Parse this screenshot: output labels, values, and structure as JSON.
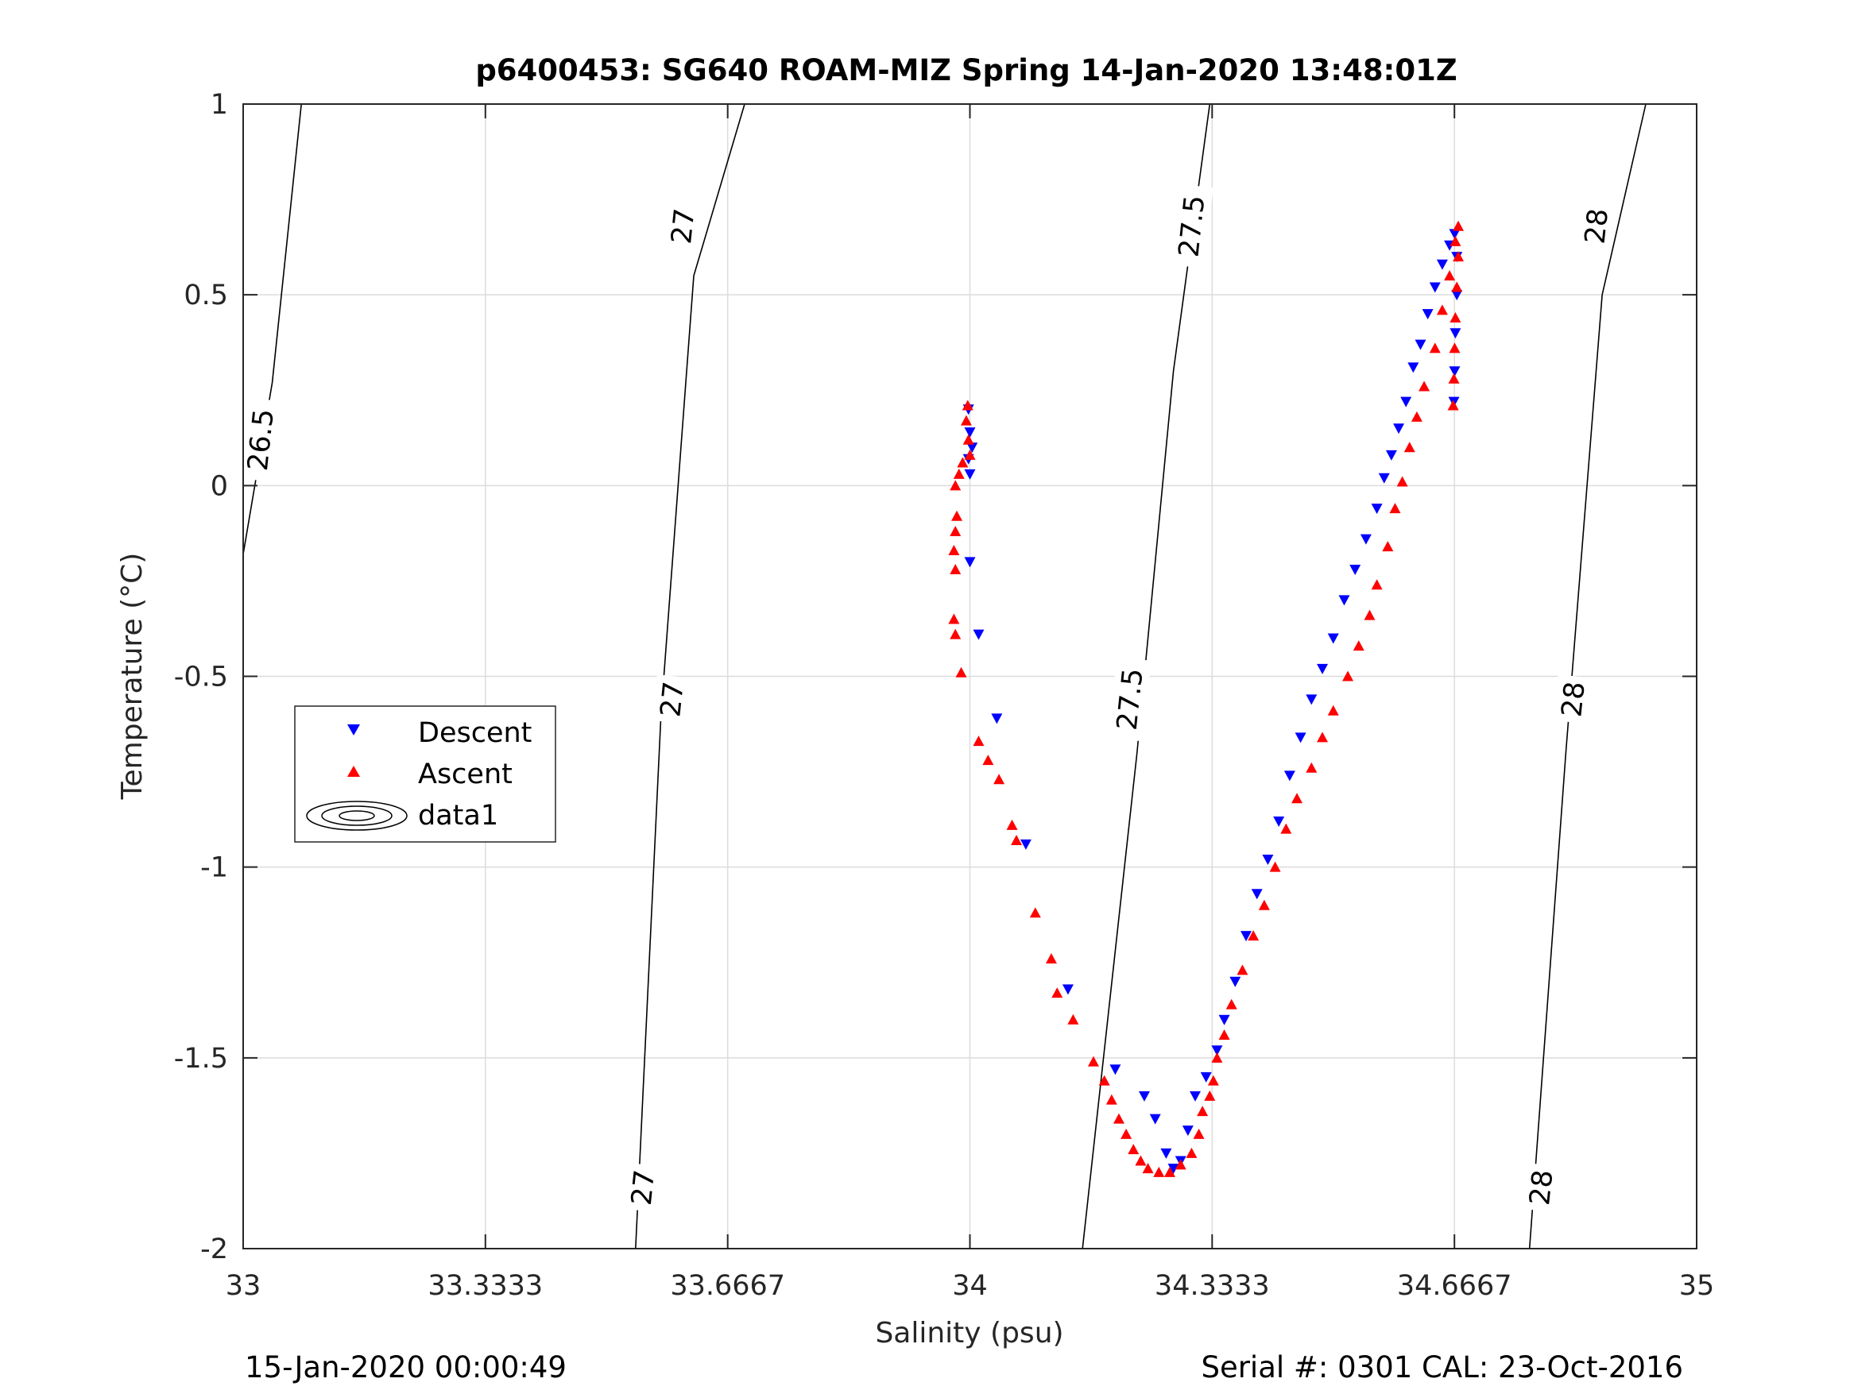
{
  "chart_data": {
    "type": "scatter",
    "title": "p6400453: SG640 ROAM-MIZ Spring 14-Jan-2020 13:48:01Z",
    "xlabel": "Salinity (psu)",
    "ylabel": "Temperature (°C)",
    "xlim": [
      33,
      35
    ],
    "ylim": [
      -2,
      1
    ],
    "xticks": [
      33,
      33.3333,
      33.6667,
      34,
      34.3333,
      34.6667,
      35
    ],
    "xtick_labels": [
      "33",
      "33.3333",
      "33.6667",
      "34",
      "34.3333",
      "34.6667",
      "35"
    ],
    "yticks": [
      -2,
      -1.5,
      -1,
      -0.5,
      0,
      0.5,
      1
    ],
    "ytick_labels": [
      "-2",
      "-1.5",
      "-1",
      "-0.5",
      "0",
      "0.5",
      "1"
    ],
    "grid": true,
    "legend_position": "middle-left",
    "legend": [
      "Descent",
      "Ascent",
      "data1"
    ],
    "series": [
      {
        "name": "Descent",
        "marker": "triangle-down",
        "color": "#0000ff",
        "points": [
          [
            33.998,
            0.2
          ],
          [
            34.0,
            0.14
          ],
          [
            34.003,
            0.1
          ],
          [
            33.998,
            0.07
          ],
          [
            34.0,
            0.03
          ],
          [
            34.0,
            -0.2
          ],
          [
            34.012,
            -0.39
          ],
          [
            34.037,
            -0.61
          ],
          [
            34.077,
            -0.94
          ],
          [
            34.135,
            -1.32
          ],
          [
            34.2,
            -1.53
          ],
          [
            34.24,
            -1.6
          ],
          [
            34.255,
            -1.66
          ],
          [
            34.27,
            -1.75
          ],
          [
            34.28,
            -1.79
          ],
          [
            34.29,
            -1.77
          ],
          [
            34.3,
            -1.69
          ],
          [
            34.31,
            -1.6
          ],
          [
            34.325,
            -1.55
          ],
          [
            34.34,
            -1.48
          ],
          [
            34.35,
            -1.4
          ],
          [
            34.365,
            -1.3
          ],
          [
            34.38,
            -1.18
          ],
          [
            34.395,
            -1.07
          ],
          [
            34.41,
            -0.98
          ],
          [
            34.425,
            -0.88
          ],
          [
            34.44,
            -0.76
          ],
          [
            34.455,
            -0.66
          ],
          [
            34.47,
            -0.56
          ],
          [
            34.485,
            -0.48
          ],
          [
            34.5,
            -0.4
          ],
          [
            34.515,
            -0.3
          ],
          [
            34.53,
            -0.22
          ],
          [
            34.545,
            -0.14
          ],
          [
            34.56,
            -0.06
          ],
          [
            34.57,
            0.02
          ],
          [
            34.58,
            0.08
          ],
          [
            34.59,
            0.15
          ],
          [
            34.6,
            0.22
          ],
          [
            34.61,
            0.31
          ],
          [
            34.62,
            0.37
          ],
          [
            34.63,
            0.45
          ],
          [
            34.64,
            0.52
          ],
          [
            34.65,
            0.58
          ],
          [
            34.66,
            0.63
          ],
          [
            34.667,
            0.66
          ],
          [
            34.67,
            0.6
          ],
          [
            34.67,
            0.5
          ],
          [
            34.668,
            0.4
          ],
          [
            34.667,
            0.3
          ],
          [
            34.666,
            0.22
          ]
        ]
      },
      {
        "name": "Ascent",
        "marker": "triangle-up",
        "color": "#ff0000",
        "points": [
          [
            33.997,
            0.21
          ],
          [
            33.995,
            0.17
          ],
          [
            33.998,
            0.12
          ],
          [
            34.0,
            0.08
          ],
          [
            33.99,
            0.06
          ],
          [
            33.985,
            0.03
          ],
          [
            33.98,
            0.0
          ],
          [
            33.982,
            -0.08
          ],
          [
            33.98,
            -0.12
          ],
          [
            33.978,
            -0.17
          ],
          [
            33.98,
            -0.22
          ],
          [
            33.978,
            -0.35
          ],
          [
            33.98,
            -0.39
          ],
          [
            33.988,
            -0.49
          ],
          [
            34.012,
            -0.67
          ],
          [
            34.025,
            -0.72
          ],
          [
            34.04,
            -0.77
          ],
          [
            34.058,
            -0.89
          ],
          [
            34.064,
            -0.93
          ],
          [
            34.09,
            -1.12
          ],
          [
            34.112,
            -1.24
          ],
          [
            34.12,
            -1.33
          ],
          [
            34.142,
            -1.4
          ],
          [
            34.17,
            -1.51
          ],
          [
            34.185,
            -1.56
          ],
          [
            34.195,
            -1.61
          ],
          [
            34.205,
            -1.66
          ],
          [
            34.215,
            -1.7
          ],
          [
            34.225,
            -1.74
          ],
          [
            34.235,
            -1.77
          ],
          [
            34.245,
            -1.79
          ],
          [
            34.26,
            -1.8
          ],
          [
            34.275,
            -1.8
          ],
          [
            34.29,
            -1.78
          ],
          [
            34.305,
            -1.75
          ],
          [
            34.315,
            -1.7
          ],
          [
            34.32,
            -1.64
          ],
          [
            34.33,
            -1.6
          ],
          [
            34.335,
            -1.56
          ],
          [
            34.34,
            -1.5
          ],
          [
            34.35,
            -1.44
          ],
          [
            34.36,
            -1.36
          ],
          [
            34.375,
            -1.27
          ],
          [
            34.39,
            -1.18
          ],
          [
            34.405,
            -1.1
          ],
          [
            34.42,
            -1.0
          ],
          [
            34.435,
            -0.9
          ],
          [
            34.45,
            -0.82
          ],
          [
            34.47,
            -0.74
          ],
          [
            34.485,
            -0.66
          ],
          [
            34.5,
            -0.59
          ],
          [
            34.52,
            -0.5
          ],
          [
            34.535,
            -0.42
          ],
          [
            34.55,
            -0.34
          ],
          [
            34.56,
            -0.26
          ],
          [
            34.575,
            -0.16
          ],
          [
            34.585,
            -0.06
          ],
          [
            34.595,
            0.01
          ],
          [
            34.605,
            0.1
          ],
          [
            34.615,
            0.18
          ],
          [
            34.625,
            0.26
          ],
          [
            34.64,
            0.36
          ],
          [
            34.65,
            0.46
          ],
          [
            34.66,
            0.55
          ],
          [
            34.668,
            0.64
          ],
          [
            34.672,
            0.68
          ],
          [
            34.672,
            0.6
          ],
          [
            34.67,
            0.52
          ],
          [
            34.668,
            0.44
          ],
          [
            34.667,
            0.36
          ],
          [
            34.666,
            0.28
          ],
          [
            34.665,
            0.21
          ]
        ]
      }
    ],
    "density_contours": [
      {
        "label": "26.5",
        "points": [
          [
            33.0,
            -0.18
          ],
          [
            33.04,
            0.27
          ],
          [
            33.08,
            1.0
          ]
        ],
        "label_at": [
          33.024,
          0.12
        ]
      },
      {
        "label": "27",
        "points": [
          [
            33.54,
            -2.0
          ],
          [
            33.575,
            -0.6
          ],
          [
            33.62,
            0.55
          ],
          [
            33.69,
            1.0
          ]
        ],
        "label_at": [
          33.605,
          0.68
        ]
      },
      {
        "label": "28",
        "points": [
          [
            34.77,
            -2.0
          ],
          [
            34.82,
            -0.7
          ],
          [
            34.87,
            0.5
          ],
          [
            34.93,
            1.0
          ]
        ],
        "label_at": [
          34.862,
          0.68
        ]
      },
      {
        "label": "27.5",
        "points": [
          [
            34.155,
            -2.0
          ],
          [
            34.23,
            -0.7
          ],
          [
            34.28,
            0.3
          ],
          [
            34.33,
            1.0
          ]
        ],
        "label_at": [
          34.305,
          0.68
        ]
      }
    ],
    "contour_labels_extra": [
      {
        "label": "27",
        "at": [
          33.59,
          -0.56
        ]
      },
      {
        "label": "27",
        "at": [
          33.55,
          -1.84
        ]
      },
      {
        "label": "27.5",
        "at": [
          34.22,
          -0.56
        ]
      },
      {
        "label": "28",
        "at": [
          34.83,
          -0.56
        ]
      },
      {
        "label": "28",
        "at": [
          34.786,
          -1.84
        ]
      }
    ]
  },
  "footer": {
    "timestamp": "15-Jan-2020 00:00:49",
    "serial": "Serial #: 0301  CAL: 23-Oct-2016"
  }
}
